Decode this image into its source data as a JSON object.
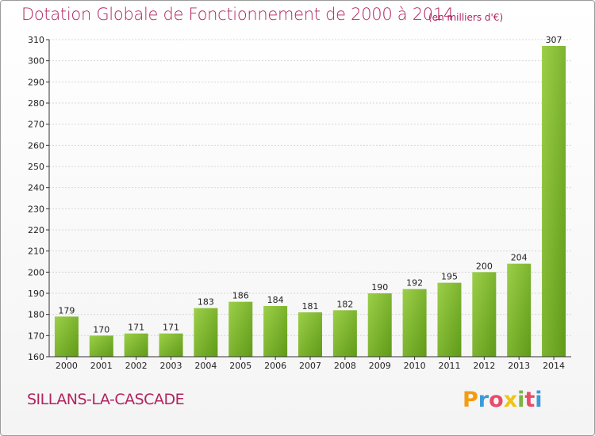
{
  "title": "Dotation Globale de Fonctionnement de 2000 à 2014",
  "unit_note": "(en milliers d'€)",
  "commune": "SILLANS-LA-CASCADE",
  "logo_text": "Proxiti",
  "colors": {
    "title": "#b0255f",
    "bar_light": "#9ccf48",
    "bar_dark": "#5f9a18",
    "grid": "#d8d8d8",
    "axis": "#333333"
  },
  "chart_data": {
    "type": "bar",
    "title": "Dotation Globale de Fonctionnement de 2000 à 2014",
    "subtitle": "(en milliers d'€)",
    "xlabel": "",
    "ylabel": "",
    "categories": [
      "2000",
      "2001",
      "2002",
      "2003",
      "2004",
      "2005",
      "2006",
      "2007",
      "2008",
      "2009",
      "2010",
      "2011",
      "2012",
      "2013",
      "2014"
    ],
    "values": [
      179,
      170,
      171,
      171,
      183,
      186,
      184,
      181,
      182,
      190,
      192,
      195,
      200,
      204,
      307
    ],
    "ylim": [
      160,
      310
    ],
    "yticks": [
      160,
      170,
      180,
      190,
      200,
      210,
      220,
      230,
      240,
      250,
      260,
      270,
      280,
      290,
      300,
      310
    ],
    "grid": true,
    "legend": "none"
  }
}
